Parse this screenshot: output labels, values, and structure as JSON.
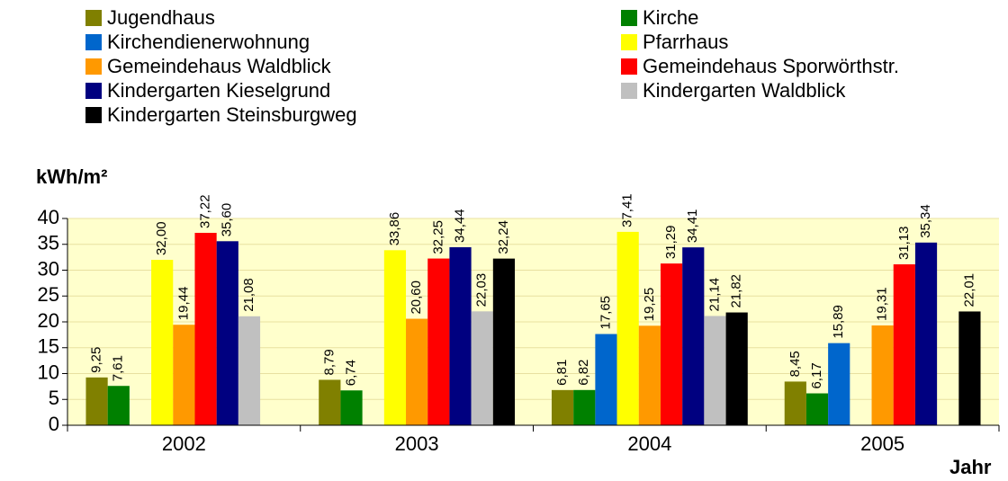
{
  "chart_data": {
    "type": "bar",
    "y_label": "kWh/m²",
    "x_label": "Jahr",
    "categories": [
      "2002",
      "2003",
      "2004",
      "2005"
    ],
    "series": [
      {
        "name": "Jugendhaus",
        "color": "#808000",
        "values": [
          9.25,
          8.79,
          6.81,
          8.45
        ],
        "value_labels": [
          "9,25",
          "8,79",
          "6,81",
          "8,45"
        ]
      },
      {
        "name": "Kirche",
        "color": "#008000",
        "values": [
          7.61,
          6.74,
          6.82,
          6.17
        ],
        "value_labels": [
          "7,61",
          "6,74",
          "6,82",
          "6,17"
        ]
      },
      {
        "name": "Kirchendienerwohnung",
        "color": "#0066cc",
        "values": [
          null,
          null,
          17.65,
          15.89
        ],
        "value_labels": [
          null,
          null,
          "17,65",
          "15,89"
        ]
      },
      {
        "name": "Pfarrhaus",
        "color": "#ffff00",
        "values": [
          32.0,
          33.86,
          37.41,
          null
        ],
        "value_labels": [
          "32,00",
          "33,86",
          "37,41",
          null
        ]
      },
      {
        "name": "Gemeindehaus Waldblick",
        "color": "#ff9900",
        "values": [
          19.44,
          20.6,
          19.25,
          19.31
        ],
        "value_labels": [
          "19,44",
          "20,60",
          "19,25",
          "19,31"
        ]
      },
      {
        "name": "Gemeindehaus Sporwörthstr.",
        "color": "#ff0000",
        "values": [
          37.22,
          32.25,
          31.29,
          31.13
        ],
        "value_labels": [
          "37,22",
          "32,25",
          "31,29",
          "31,13"
        ]
      },
      {
        "name": "Kindergarten Kieselgrund",
        "color": "#000080",
        "values": [
          35.6,
          34.44,
          34.41,
          35.34
        ],
        "value_labels": [
          "35,60",
          "34,44",
          "34,41",
          "35,34"
        ]
      },
      {
        "name": "Kindergarten Waldblick",
        "color": "#c0c0c0",
        "values": [
          21.08,
          22.03,
          21.14,
          null
        ],
        "value_labels": [
          "21,08",
          "22,03",
          "21,14",
          null
        ]
      },
      {
        "name": "Kindergarten Steinsburgweg",
        "color": "#000000",
        "values": [
          null,
          32.24,
          21.82,
          22.01
        ],
        "value_labels": [
          null,
          "32,24",
          "21,82",
          "22,01"
        ]
      }
    ],
    "ylim": [
      0,
      40
    ],
    "yticks": [
      0,
      5,
      10,
      15,
      20,
      25,
      30,
      35,
      40
    ],
    "grid": true,
    "legend": "top"
  }
}
